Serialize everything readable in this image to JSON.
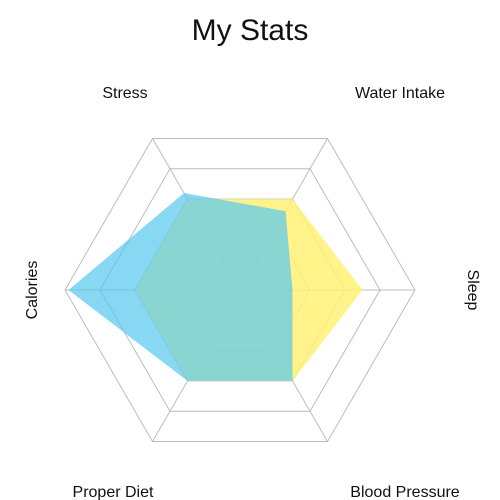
{
  "chart_data": {
    "type": "radar",
    "title": "My Stats",
    "axes": [
      "Water Intake",
      "Sleep",
      "Blood Pressure",
      "Proper Diet",
      "Calories",
      "Stress"
    ],
    "rlim": [
      0,
      100
    ],
    "grid_levels": 5,
    "grid": true,
    "legend": "none",
    "series": [
      {
        "color": "#fff176",
        "opacity": 0.85,
        "values": [
          60,
          70,
          60,
          60,
          60,
          60
        ]
      },
      {
        "color": "#56c8f0",
        "opacity": 0.7,
        "values": [
          52,
          30,
          60,
          60,
          98,
          64
        ]
      }
    ]
  }
}
